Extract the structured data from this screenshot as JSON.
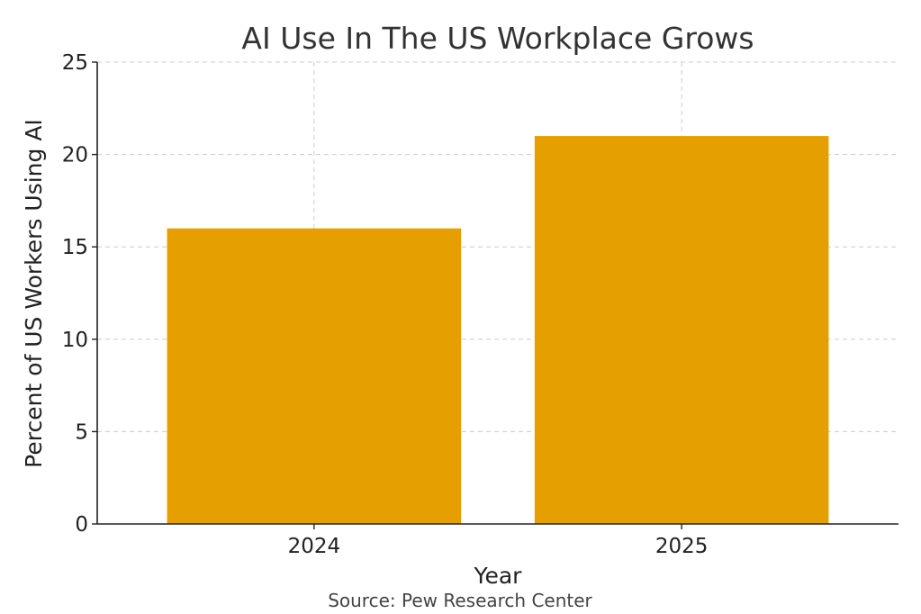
{
  "chart_data": {
    "type": "bar",
    "title": "AI Use In The US Workplace Grows",
    "xlabel": "Year",
    "ylabel": "Percent of US Workers Using AI",
    "categories": [
      "2024",
      "2025"
    ],
    "values": [
      16,
      21
    ],
    "ylim": [
      0,
      25
    ],
    "yticks": [
      0,
      5,
      10,
      15,
      20,
      25
    ],
    "grid": true,
    "bar_color": "#E69F00",
    "source": "Source: Pew Research Center"
  }
}
